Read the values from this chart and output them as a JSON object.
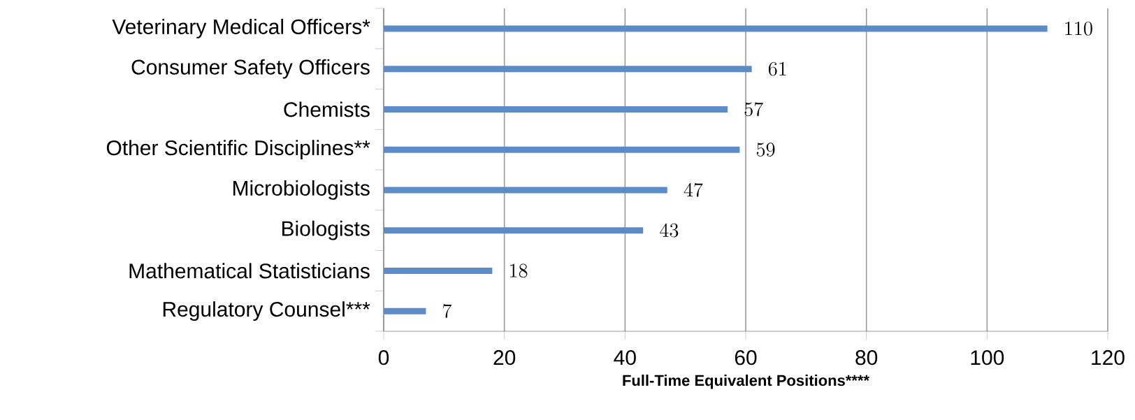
{
  "chart_data": {
    "type": "bar",
    "orientation": "horizontal",
    "categories": [
      "Veterinary Medical Officers*",
      "Consumer Safety Officers",
      "Chemists",
      "Other Scientific Disciplines**",
      "Microbiologists",
      "Biologists",
      "Mathematical Statisticians",
      "Regulatory Counsel***"
    ],
    "values": [
      110,
      61,
      57,
      59,
      47,
      43,
      18,
      7
    ],
    "color": "#5b8cc8",
    "xlim": [
      0,
      120
    ],
    "xticks": [
      0,
      20,
      40,
      60,
      80,
      100,
      120
    ],
    "xlabel": "Full-Time Equivalent Positions****",
    "grid": "x",
    "data_labels": true
  }
}
